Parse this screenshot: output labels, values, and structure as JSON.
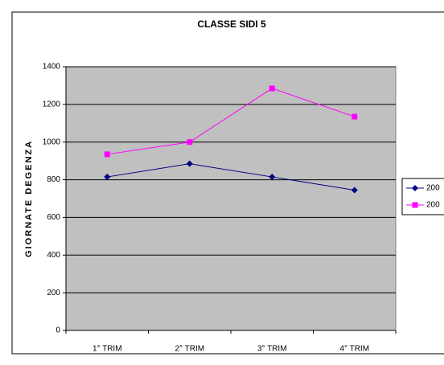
{
  "chart_data": {
    "type": "line",
    "title": "CLASSE SIDI 5",
    "y_label": "GIORNATE DEGENZA",
    "categories": [
      "1° TRIM",
      "2° TRIM",
      "3° TRIM",
      "4° TRIM"
    ],
    "series": [
      {
        "name": "200",
        "color": "#000080",
        "marker": "diamond",
        "values": [
          815,
          885,
          815,
          745
        ]
      },
      {
        "name": "200",
        "color": "#ff00ff",
        "marker": "square",
        "values": [
          935,
          1000,
          1285,
          1135
        ]
      }
    ],
    "ylim": [
      0,
      1400
    ],
    "yticks": [
      0,
      200,
      400,
      600,
      800,
      1000,
      1200,
      1400
    ],
    "grid": true,
    "legend": "right",
    "plot_background": "#c0c0c0"
  }
}
